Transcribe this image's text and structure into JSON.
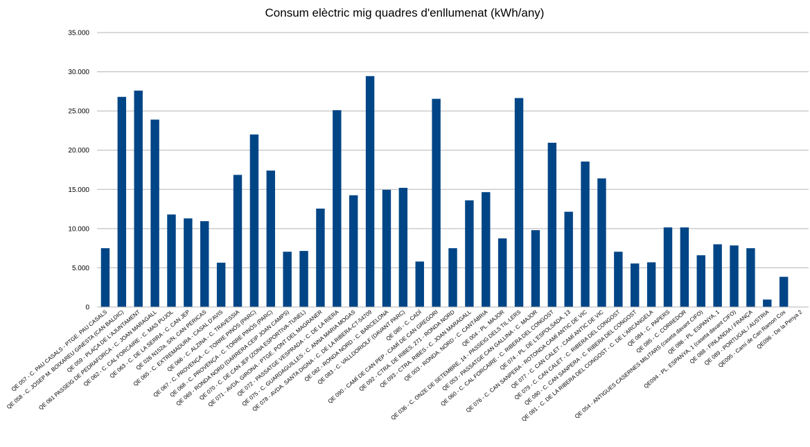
{
  "chart_data": {
    "type": "bar",
    "title": "Consum elèctric mig quadres d'enllumenat (kWh/any)",
    "xlabel": "",
    "ylabel": "",
    "ylim": [
      0,
      35000
    ],
    "yticks": [
      0,
      5000,
      10000,
      15000,
      20000,
      25000,
      30000,
      35000
    ],
    "ytick_labels": [
      "0",
      "5.000",
      "10.000",
      "15.000",
      "20.000",
      "25.000",
      "30.000",
      "35.000"
    ],
    "grid": true,
    "legend": "none",
    "bar_color": "#004586",
    "categories": [
      "QE 057 - C. PAU CASALS - PTGE. PAU CASALS",
      "QE 058 - C. JOSEP M. BOIXAREU GINESTA (CAN BALDIC)",
      "QE 059 - PLAÇA DE L'AJUNTAMENT",
      "QE 061 PASSEIG DE PEDRAFORCA - C. JOAN MARAGALL",
      "QE 062 - C. CAL FORCAIRE - C. MAS PUJOL",
      "QE 063 - C. DE LA SERRA - C. CAN JEP",
      "QE 026 N152a, S/N, CAN PERICAS",
      "QE 065 - C. EXTREMADURA - CASAL D'AVIS",
      "QE 066 - C. ALZINA - C. TRAVESSIA",
      "QE 067 - C. PROVENÇA - C. TORRE PINÓS (PARC)",
      "QE 068 - C. PROVENÇA - C. TORRE PINÓS (PARC)",
      "QE 069 - RONDA NORD (DARRERA CEIP JOAN CAMPS)",
      "QE 070 - C. DE CAN JEP (ZONA ESPORTIVA-TUNEL)",
      "QE 071 - AVDA. GIRONA - PTGE. PONT DEL MAGRANER",
      "QE 072 - PASSATGE VESPRADA - C. DE LA RIERA",
      "QE 075 - C. GUARDAGUILLES - C. ANNA MARIA MOGAS",
      "QE 078 - AVDA. SANTA DIGNA - C. DE LA RIBERA-CT-54709",
      "QE 082 - RONDA NORD - C. BARCELONA",
      "QE 083 - C. VALLDORIOLF (DAVANT PARC)",
      "QE 085 - C. CADÍ",
      "QE 090 - CAMÍ DE CAN PEP - CAMÍ DE CAN GREGORI",
      "QE 092 - CTRA. DE RIBES, 271 - RONDA NORD",
      "QE 093 - CTRA. RIBES - C. JOAN MARAGALL",
      "QE 003 - RONDA. NORD - C. CANTÀBRIA",
      "QE 004 - PL. MAJOR",
      "QE 036 - C. ONZE DE SETEMBRE, 14 - PASSEIG DELS TIL·LERS",
      "QE 053 - PASSATGE CAN GALLINA - C. MAJOR",
      "QE 060 - C. CAL FORCAIRE - C. RIBERA DEL CONGOST",
      "QE 074 - PL. DE L'ESPOLSADA, 13",
      "QE 076 - C. CAN SANPERA - ROTONDA CAMÍ ANTIC DE VIC",
      "QE 077 - C. CAN CALET - CAMÍ ANTIC DE VIC",
      "QE 079 - C. CAN CALET - C. RIBERA DEL CONGOST",
      "QE 080 - C. CAN SANPERA - C. RIBERA DEL CONGOST",
      "QE 081 - C. DE LA RIBERA DEL CONGOST - C. DE L'ARCÀNGELA",
      "QE 084 - C. PAPERS",
      "QE 085 - C. CORREDOR",
      "QE 054 - ANTIGUES CASERNES MILITARS (caseta davant CIFO)",
      "QE 086 - PL. ESPANYA, 1",
      "QE094 - PL. ESPANYA, 1 (caseta davant CIFO)",
      "QE 088 - FINLANDIA / FRANÇA",
      "QE 089 - PORTUGAL / AUSTRIA",
      "QE095 - Camí de Can Ramon Cox",
      "QE096 - De la Penya 2"
    ],
    "x_tick_labels": [
      "QE 057 - C. PAU CASALS - PTGE. PAU CASALS",
      "QE 058 - C. JOSEP M. BOIXAREU GINESTA (CAN BALDIC)",
      "QE 059 - PLAÇA DE L'AJUNTAMENT",
      "QE 061 PASSEIG DE PEDRAFORCA - C. JOAN MARAGALL",
      "QE 062 - C. CAL FORCAIRE - C. MAS PUJOL",
      "QE 063 - C. DE LA SERRA - C. CAN JEP",
      "QE 026 N152a, S/N, CAN PERICAS",
      "QE 065 - C. EXTREMADURA - CASAL D'AVIS",
      "QE 066 - C. ALZINA - C. TRAVESSIA",
      "QE 067 - C. PROVENÇA - C. TORRE PINÓS (PARC)",
      "QE 068 - C. PROVENÇA - C. TORRE PINÓS (PARC)",
      "QE 069 - RONDA NORD (DARRERA CEIP JOAN CAMPS)",
      "QE 070 - C. DE CAN JEP (ZONA ESPORTIVA-TUNEL)",
      "QE 071 - AVDA. GIRONA - PTGE. PONT DEL MAGRANER",
      "QE 072 - PASSATGE VESPRADA - C. DE LA RIERA",
      "QE 075 - C. GUARDAGUILLES - C. ANNA MARIA MOGAS",
      "QE 078 - AVDA. SANTA DIGNA - C. DE LA RIBERA-CT-54709",
      "QE 082 - RONDA NORD - C. BARCELONA",
      "QE 083 - C. VALLDORIOLF (DAVANT PARC)",
      "QE 085 - C. CADÍ",
      "QE 090 - CAMÍ DE CAN PEP - CAMÍ DE CAN GREGORI",
      "QE 092 - CTRA. DE RIBES, 271 - RONDA NORD",
      "QE 093 - CTRA. RIBES - C. JOAN MARAGALL",
      "QE 003 - RONDA. NORD - C. CANTÀBRIA",
      "QE 004 - PL. MAJOR",
      "QE 036 - C. ONZE DE SETEMBRE, 14 - PASSEIG DELS TIL·LERS",
      "QE 053 - PASSATGE CAN GALLINA - C. MAJOR",
      "QE 060 - C. CAL FORCAIRE - C. RIBERA DEL CONGOST",
      "QE 074 - PL. DE L'ESPOLSADA, 13",
      "QE 076 - C. CAN SANPERA - ROTONDA CAMÍ ANTIC DE VIC",
      "QE 077 - C. CAN CALET - CAMÍ ANTIC DE VIC",
      "QE 079 - C. CAN CALET - C. RIBERA DEL CONGOST",
      "QE 080 - C. CAN SANPERA - C. RIBERA DEL CONGOST",
      "QE 081 - C. DE LA RIBERA DEL CONGOST - C. DE L'ARCÀNGELA",
      "QE 084 - C. PAPERS",
      "QE 085 - C. CORREDOR",
      "QE 054 - ANTIGUES CASERNES MILITARS (caseta davant CIFO)",
      "QE 086 - PL. ESPANYA, 1",
      "QE094 - PL. ESPANYA, 1 (caseta davant CIFO)",
      "QE 088 - FINLANDIA / FRANÇA",
      "QE 089 - PORTUGAL / AUSTRIA",
      "QE095 - Camí de Can Ramon Cox",
      "QE096 - De la Penya 2"
    ],
    "values": [
      7500,
      26800,
      27600,
      23900,
      11800,
      11300,
      10950,
      5650,
      16850,
      22000,
      17400,
      7050,
      7150,
      12550,
      25100,
      14250,
      29450,
      14950,
      15200,
      5800,
      26550,
      7500,
      13600,
      14650,
      8750,
      26650,
      9800,
      20950,
      12150,
      18550,
      16400,
      7050,
      5550,
      5700,
      10150,
      10150,
      6600,
      8000,
      7850,
      7500,
      950,
      3850,
      0
    ]
  }
}
